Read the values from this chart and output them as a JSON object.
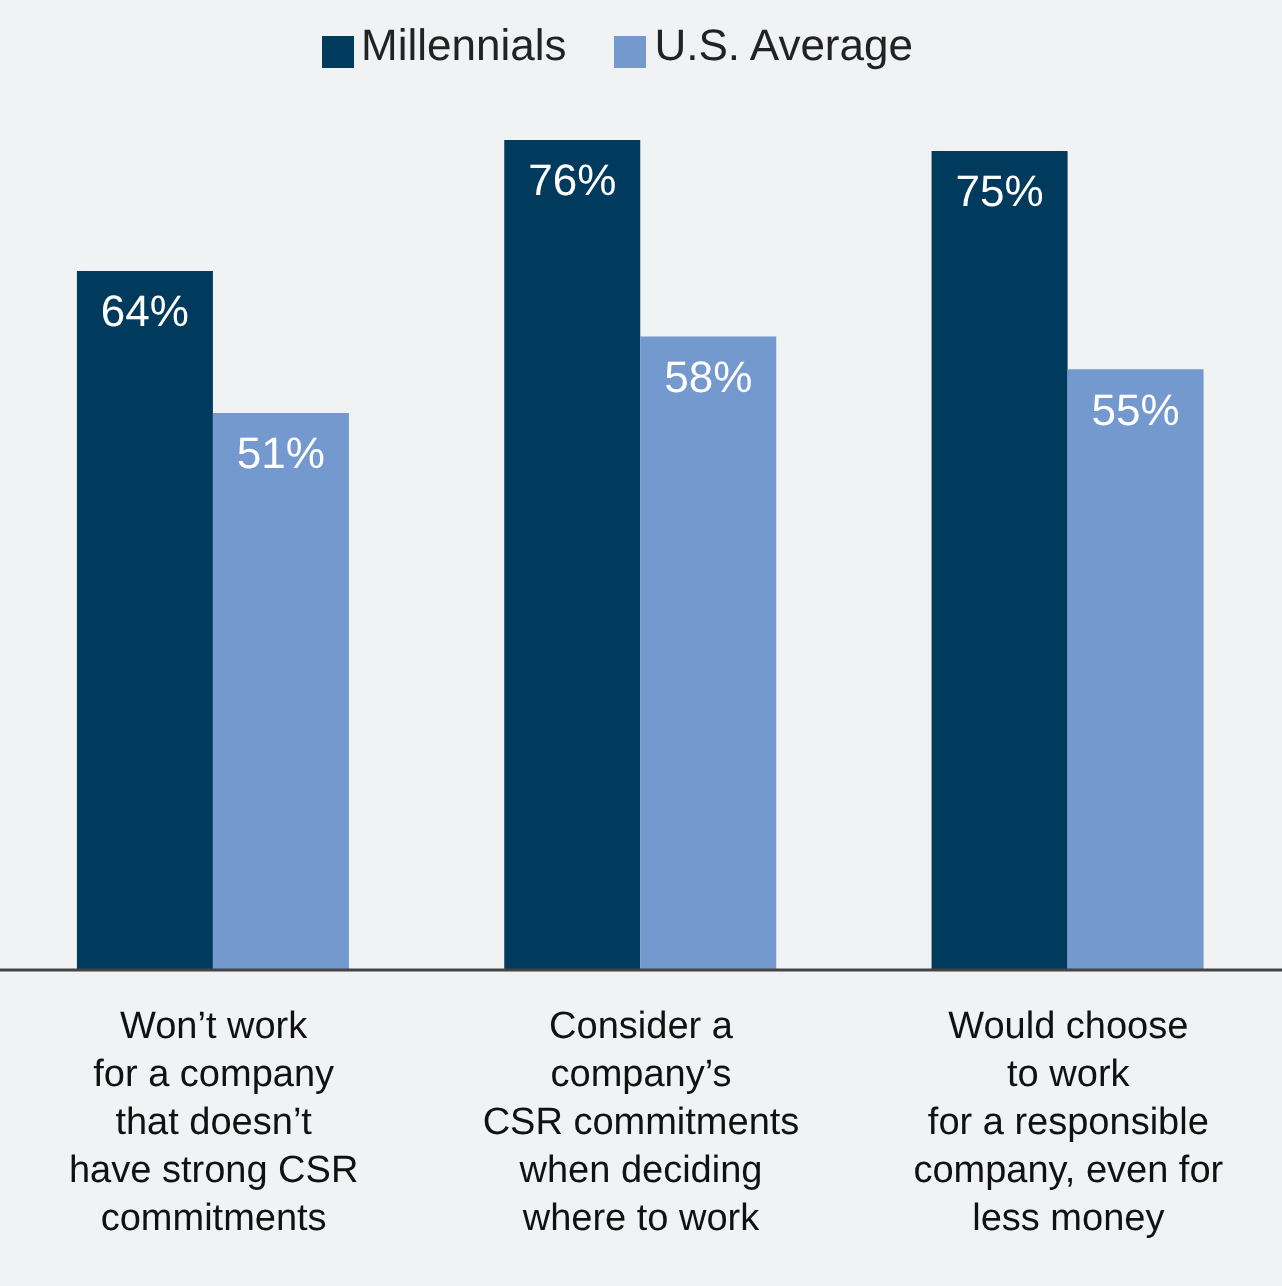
{
  "chart_data": {
    "type": "bar",
    "categories": [
      "Won’t work\nfor a company\nthat doesn’t\nhave strong CSR\ncommitments",
      "Consider a\ncompany’s\nCSR commitments\nwhen deciding\nwhere to work",
      "Would choose\nto work\nfor a responsible\ncompany, even for\nless money"
    ],
    "series": [
      {
        "name": "Millennials",
        "color": "#003a5d",
        "values": [
          64,
          76,
          75
        ],
        "value_labels": [
          "64%",
          "76%",
          "75%"
        ]
      },
      {
        "name": "U.S. Average",
        "color": "#7399cf",
        "values": [
          51,
          58,
          55
        ],
        "value_labels": [
          "51%",
          "58%",
          "55%"
        ]
      }
    ],
    "legend": "top",
    "grid": false
  }
}
